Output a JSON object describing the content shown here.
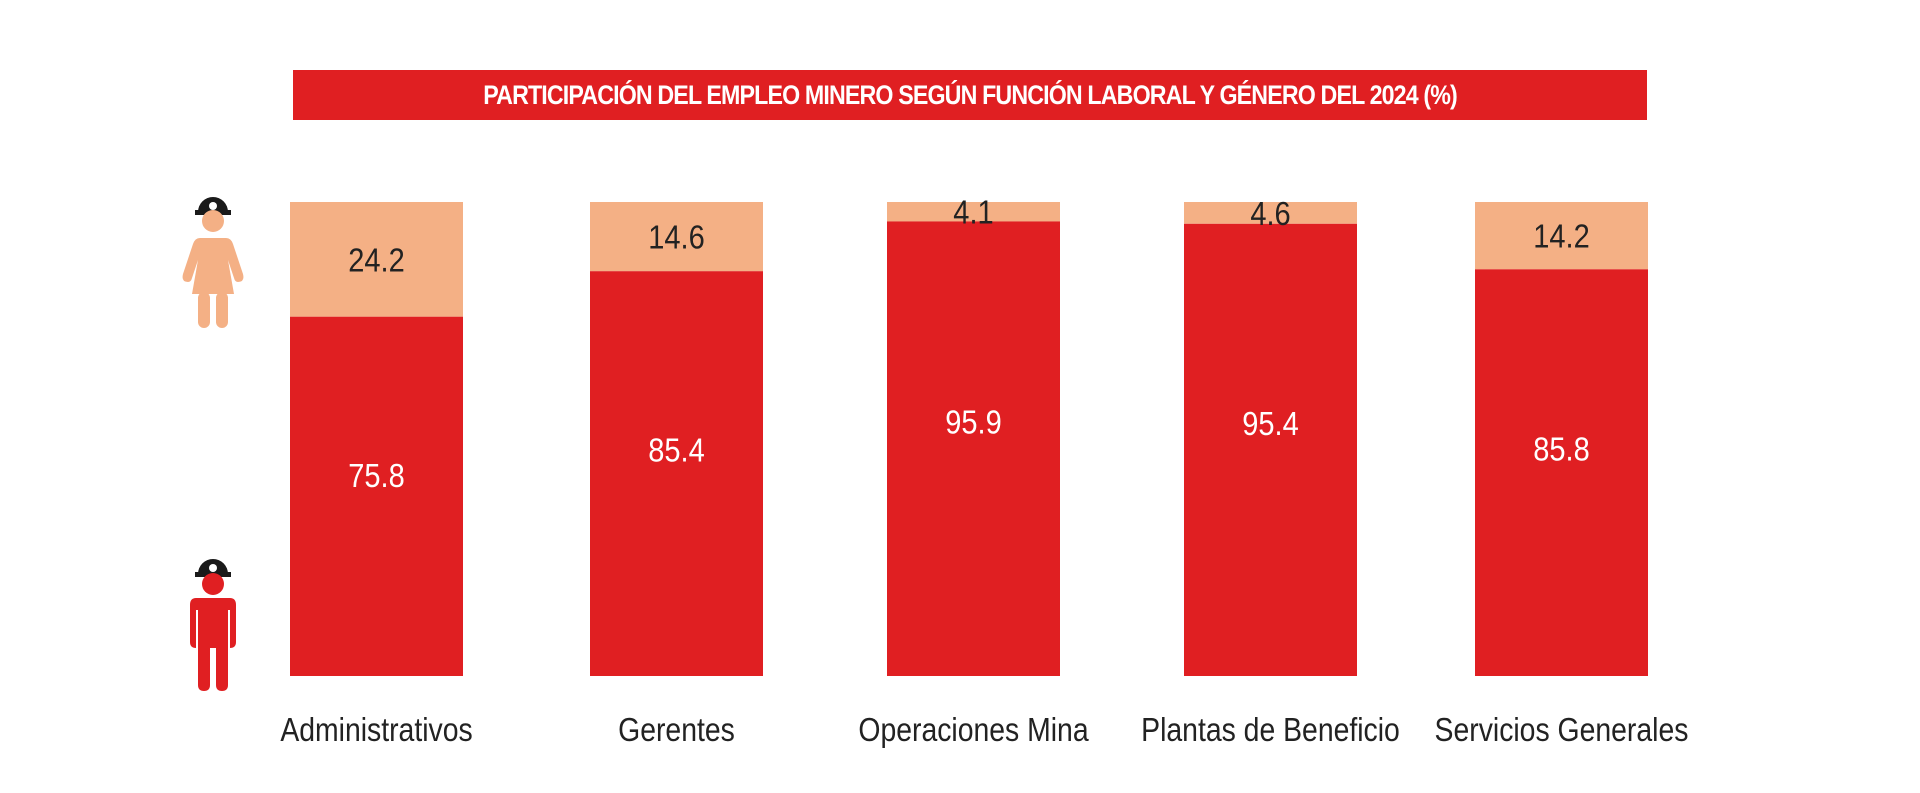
{
  "chart_data": {
    "type": "bar",
    "stacked": true,
    "orientation": "vertical",
    "title": "PARTICIPACIÓN DEL EMPLEO MINERO SEGÚN FUNCIÓN LABORAL Y GÉNERO DEL 2024 (%)",
    "xlabel": "",
    "ylabel": "",
    "ylim": [
      0,
      100
    ],
    "grid": false,
    "categories": [
      "Administrativos",
      "Gerentes",
      "Operaciones Mina",
      "Plantas de Beneficio",
      "Servicios Generales"
    ],
    "series": [
      {
        "name": "Hombres",
        "color": "#e01f22",
        "label_color": "#ffffff",
        "values": [
          75.8,
          85.4,
          95.9,
          95.4,
          85.8
        ],
        "labels": [
          "75.8",
          "85.4",
          "95.9",
          "95.4",
          "85.8"
        ]
      },
      {
        "name": "Mujeres",
        "color": "#f4b085",
        "label_color": "#222222",
        "values": [
          24.2,
          14.6,
          4.1,
          4.6,
          14.2
        ],
        "labels": [
          "24.2",
          "14.6",
          "4.1",
          "4.6",
          "14.2"
        ]
      }
    ],
    "legend": {
      "placement": "left",
      "entries": [
        {
          "series": "Mujeres",
          "icon": "female-miner-icon",
          "color": "#f4b085"
        },
        {
          "series": "Hombres",
          "icon": "male-miner-icon",
          "color": "#e01f22"
        }
      ]
    }
  },
  "colors": {
    "title_band": "#e01f22",
    "helmet": "#1a1a1a"
  }
}
